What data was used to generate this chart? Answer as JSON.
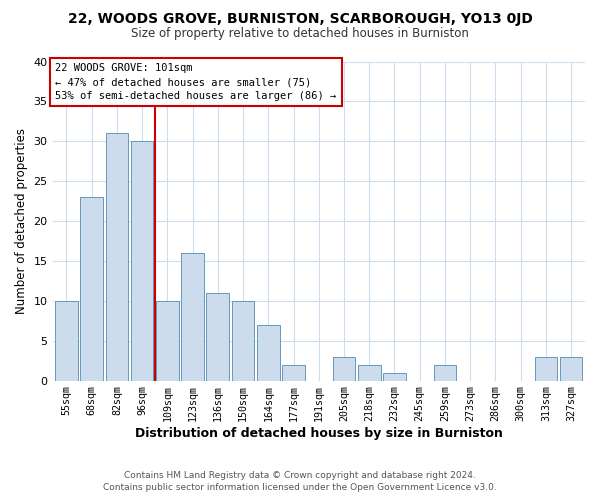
{
  "title": "22, WOODS GROVE, BURNISTON, SCARBOROUGH, YO13 0JD",
  "subtitle": "Size of property relative to detached houses in Burniston",
  "xlabel": "Distribution of detached houses by size in Burniston",
  "ylabel": "Number of detached properties",
  "bar_labels": [
    "55sqm",
    "68sqm",
    "82sqm",
    "96sqm",
    "109sqm",
    "123sqm",
    "136sqm",
    "150sqm",
    "164sqm",
    "177sqm",
    "191sqm",
    "205sqm",
    "218sqm",
    "232sqm",
    "245sqm",
    "259sqm",
    "273sqm",
    "286sqm",
    "300sqm",
    "313sqm",
    "327sqm"
  ],
  "bar_values": [
    10,
    23,
    31,
    30,
    10,
    16,
    11,
    10,
    7,
    2,
    0,
    3,
    2,
    1,
    0,
    2,
    0,
    0,
    0,
    3,
    3
  ],
  "bar_color": "#ccdcec",
  "bar_edge_color": "#6699bb",
  "vline_x": 3.5,
  "vline_color": "#cc0000",
  "annotation_title": "22 WOODS GROVE: 101sqm",
  "annotation_line1": "← 47% of detached houses are smaller (75)",
  "annotation_line2": "53% of semi-detached houses are larger (86) →",
  "box_edge_color": "#cc0000",
  "ylim": [
    0,
    40
  ],
  "yticks": [
    0,
    5,
    10,
    15,
    20,
    25,
    30,
    35,
    40
  ],
  "footer_line1": "Contains HM Land Registry data © Crown copyright and database right 2024.",
  "footer_line2": "Contains public sector information licensed under the Open Government Licence v3.0.",
  "background_color": "#ffffff",
  "grid_color": "#ccddee"
}
